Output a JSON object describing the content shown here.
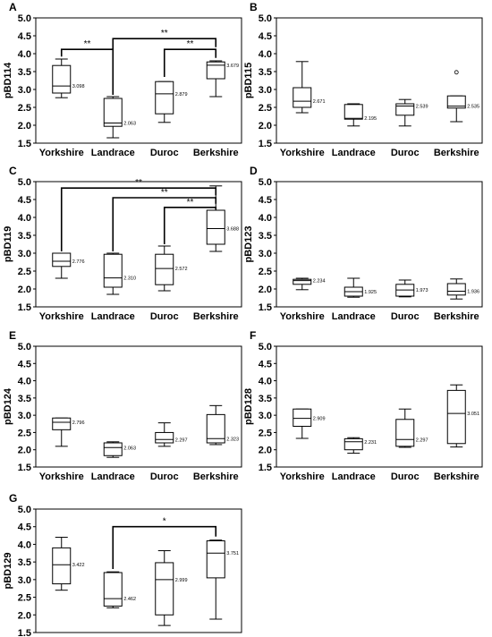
{
  "chart_data": [
    {
      "panel": "A",
      "type": "box",
      "ylabel": "pBD114",
      "ylim": [
        1.5,
        5.0
      ],
      "yticks": [
        "1.5",
        "2.0",
        "2.5",
        "3.0",
        "3.5",
        "4.0",
        "4.5",
        "5.0"
      ],
      "categories": [
        "Yorkshire",
        "Landrace",
        "Duroc",
        "Berkshire"
      ],
      "boxes": [
        {
          "min": 2.77,
          "q1": 2.9,
          "median": 3.098,
          "q3": 3.67,
          "max": 3.85,
          "median_label": "3.098"
        },
        {
          "min": 1.65,
          "q1": 1.97,
          "median": 2.063,
          "q3": 2.75,
          "max": 2.8,
          "median_label": "2.063"
        },
        {
          "min": 2.08,
          "q1": 2.32,
          "median": 2.879,
          "q3": 3.22,
          "max": 3.22,
          "median_label": "2.879"
        },
        {
          "min": 2.8,
          "q1": 3.3,
          "median": 3.679,
          "q3": 3.77,
          "max": 3.8,
          "median_label": "3.679"
        }
      ],
      "outliers": [],
      "significance": [
        {
          "from": 0,
          "to": 1,
          "label": "**",
          "y": 4.12,
          "y_from": 3.92,
          "y_to": 2.85
        },
        {
          "from": 1,
          "to": 3,
          "label": "**",
          "y": 4.42,
          "y_from": 4.12,
          "y_to": 4.18
        },
        {
          "from": 2,
          "to": 3,
          "label": "**",
          "y": 4.12,
          "y_from": 3.35,
          "y_to": 3.88
        }
      ]
    },
    {
      "panel": "B",
      "type": "box",
      "ylabel": "pBD115",
      "ylim": [
        1.5,
        5.0
      ],
      "yticks": [
        "1.5",
        "2.0",
        "2.5",
        "3.0",
        "3.5",
        "4.0",
        "4.5",
        "5.0"
      ],
      "categories": [
        "Yorkshire",
        "Landrace",
        "Duroc",
        "Berkshire"
      ],
      "boxes": [
        {
          "min": 2.35,
          "q1": 2.5,
          "median": 2.671,
          "q3": 3.05,
          "max": 3.78,
          "median_label": "2.671"
        },
        {
          "min": 1.98,
          "q1": 2.17,
          "median": 2.195,
          "q3": 2.58,
          "max": 2.6,
          "median_label": "2.195"
        },
        {
          "min": 1.98,
          "q1": 2.28,
          "median": 2.539,
          "q3": 2.6,
          "max": 2.72,
          "median_label": "2.539"
        },
        {
          "min": 2.1,
          "q1": 2.48,
          "median": 2.535,
          "q3": 2.82,
          "max": 2.82,
          "median_label": "2.535"
        }
      ],
      "outliers": [
        {
          "box": 3,
          "value": 3.48
        }
      ],
      "significance": []
    },
    {
      "panel": "C",
      "type": "box",
      "ylabel": "pBD119",
      "ylim": [
        1.5,
        5.0
      ],
      "yticks": [
        "1.5",
        "2.0",
        "2.5",
        "3.0",
        "3.5",
        "4.0",
        "4.5",
        "5.0"
      ],
      "categories": [
        "Yorkshire",
        "Landrace",
        "Duroc",
        "Berkshire"
      ],
      "boxes": [
        {
          "min": 2.3,
          "q1": 2.63,
          "median": 2.776,
          "q3": 3.0,
          "max": 3.0,
          "median_label": "2.776"
        },
        {
          "min": 1.85,
          "q1": 2.05,
          "median": 2.31,
          "q3": 2.97,
          "max": 3.0,
          "median_label": "2.310"
        },
        {
          "min": 1.95,
          "q1": 2.12,
          "median": 2.572,
          "q3": 2.97,
          "max": 3.2,
          "median_label": "2.572"
        },
        {
          "min": 3.05,
          "q1": 3.25,
          "median": 3.688,
          "q3": 4.2,
          "max": 4.88,
          "median_label": "3.688"
        }
      ],
      "outliers": [],
      "significance": [
        {
          "from": 0,
          "to": 3,
          "label": "**",
          "y": 4.82,
          "y_from": 3.05,
          "y_to": 4.62
        },
        {
          "from": 1,
          "to": 3,
          "label": "**",
          "y": 4.55,
          "y_from": 3.05,
          "y_to": 4.38
        },
        {
          "from": 2,
          "to": 3,
          "label": "**",
          "y": 4.28,
          "y_from": 3.25,
          "y_to": 4.22
        }
      ]
    },
    {
      "panel": "D",
      "type": "box",
      "ylabel": "pBD123",
      "ylim": [
        1.5,
        5.0
      ],
      "yticks": [
        "1.5",
        "2.0",
        "2.5",
        "3.0",
        "3.5",
        "4.0",
        "4.5",
        "5.0"
      ],
      "categories": [
        "Yorkshire",
        "Landrace",
        "Duroc",
        "Berkshire"
      ],
      "boxes": [
        {
          "min": 1.98,
          "q1": 2.13,
          "median": 2.234,
          "q3": 2.27,
          "max": 2.3,
          "median_label": "2.234"
        },
        {
          "min": 1.77,
          "q1": 1.8,
          "median": 1.925,
          "q3": 2.05,
          "max": 2.3,
          "median_label": "1.925"
        },
        {
          "min": 1.78,
          "q1": 1.8,
          "median": 1.973,
          "q3": 2.13,
          "max": 2.25,
          "median_label": "1.973"
        },
        {
          "min": 1.72,
          "q1": 1.83,
          "median": 1.936,
          "q3": 2.15,
          "max": 2.28,
          "median_label": "1.936"
        }
      ],
      "outliers": [],
      "significance": []
    },
    {
      "panel": "E",
      "type": "box",
      "ylabel": "pBD124",
      "ylim": [
        1.5,
        5.0
      ],
      "yticks": [
        "1.5",
        "2.0",
        "2.5",
        "3.0",
        "3.5",
        "4.0",
        "4.5",
        "5.0"
      ],
      "categories": [
        "Yorkshire",
        "Landrace",
        "Duroc",
        "Berkshire"
      ],
      "boxes": [
        {
          "min": 2.1,
          "q1": 2.58,
          "median": 2.796,
          "q3": 2.92,
          "max": 2.92,
          "median_label": "2.796"
        },
        {
          "min": 1.78,
          "q1": 1.83,
          "median": 2.063,
          "q3": 2.2,
          "max": 2.23,
          "median_label": "2.063"
        },
        {
          "min": 2.1,
          "q1": 2.2,
          "median": 2.297,
          "q3": 2.5,
          "max": 2.78,
          "median_label": "2.297"
        },
        {
          "min": 2.15,
          "q1": 2.2,
          "median": 2.323,
          "q3": 3.02,
          "max": 3.28,
          "median_label": "2.323"
        }
      ],
      "outliers": [],
      "significance": []
    },
    {
      "panel": "F",
      "type": "box",
      "ylabel": "pBD128",
      "ylim": [
        1.5,
        5.0
      ],
      "yticks": [
        "1.5",
        "2.0",
        "2.5",
        "3.0",
        "3.5",
        "4.0",
        "4.5",
        "5.0"
      ],
      "categories": [
        "Yorkshire",
        "Landrace",
        "Duroc",
        "Berkshire"
      ],
      "boxes": [
        {
          "min": 2.33,
          "q1": 2.68,
          "median": 2.909,
          "q3": 3.18,
          "max": 3.18,
          "median_label": "2.909"
        },
        {
          "min": 1.9,
          "q1": 2.0,
          "median": 2.231,
          "q3": 2.32,
          "max": 2.35,
          "median_label": "2.231"
        },
        {
          "min": 2.07,
          "q1": 2.1,
          "median": 2.297,
          "q3": 2.88,
          "max": 3.18,
          "median_label": "2.297"
        },
        {
          "min": 2.08,
          "q1": 2.18,
          "median": 3.051,
          "q3": 3.72,
          "max": 3.88,
          "median_label": "3.051"
        }
      ],
      "outliers": [],
      "significance": []
    },
    {
      "panel": "G",
      "type": "box",
      "ylabel": "pBD129",
      "ylim": [
        1.5,
        5.0
      ],
      "yticks": [
        "1.5",
        "2.0",
        "2.5",
        "3.0",
        "3.5",
        "4.0",
        "4.5",
        "5.0"
      ],
      "categories": [
        "Yorkshire",
        "Landrace",
        "Duroc",
        "Berkshire"
      ],
      "boxes": [
        {
          "min": 2.7,
          "q1": 2.88,
          "median": 3.422,
          "q3": 3.9,
          "max": 4.2,
          "median_label": "3.422"
        },
        {
          "min": 2.2,
          "q1": 2.25,
          "median": 2.462,
          "q3": 3.2,
          "max": 3.22,
          "median_label": "2.462"
        },
        {
          "min": 1.7,
          "q1": 2.0,
          "median": 2.999,
          "q3": 3.48,
          "max": 3.82,
          "median_label": "2.999"
        },
        {
          "min": 1.88,
          "q1": 3.05,
          "median": 3.751,
          "q3": 4.1,
          "max": 4.12,
          "median_label": "3.751"
        }
      ],
      "outliers": [],
      "significance": [
        {
          "from": 1,
          "to": 3,
          "label": "*",
          "y": 4.5,
          "y_from": 3.3,
          "y_to": 4.22
        }
      ]
    }
  ]
}
